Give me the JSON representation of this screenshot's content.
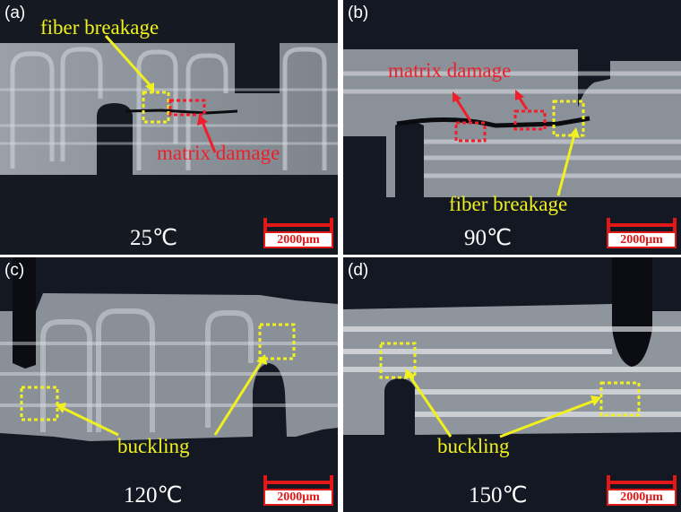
{
  "panels": {
    "a": {
      "tag": "(a)",
      "temp": "25℃",
      "scale": "2000μm",
      "fiber": "fiber breakage",
      "matrix": "matrix damage"
    },
    "b": {
      "tag": "(b)",
      "temp": "90℃",
      "scale": "2000μm",
      "fiber": "fiber breakage",
      "matrix": "matrix damage"
    },
    "c": {
      "tag": "(c)",
      "temp": "120℃",
      "scale": "2000μm",
      "buckling": "buckling"
    },
    "d": {
      "tag": "(d)",
      "temp": "150℃",
      "scale": "2000μm",
      "buckling": "buckling"
    }
  },
  "colors": {
    "annotation_yellow": "#f0f020",
    "annotation_red": "#ef1e2a",
    "scale_red": "#e01818",
    "background": "#141823"
  }
}
